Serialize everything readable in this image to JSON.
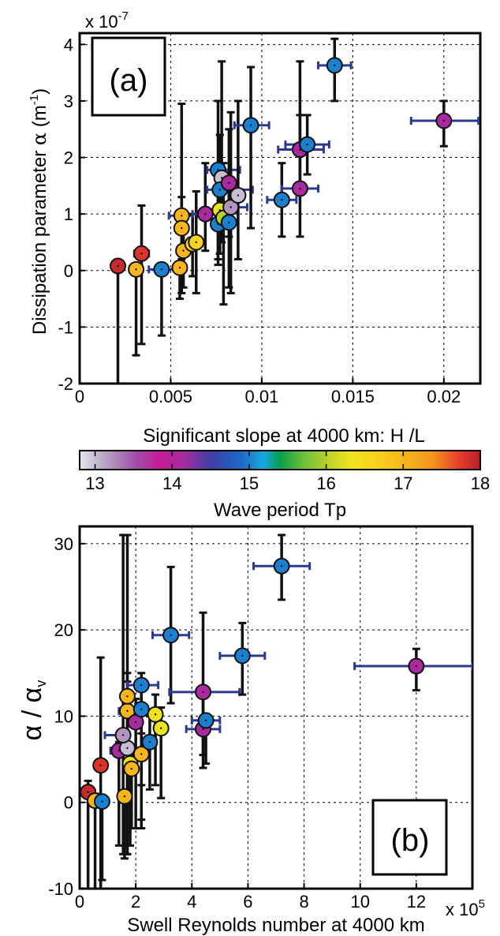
{
  "colorbar": {
    "label": "Wave period Tp",
    "range": [
      12.8,
      18
    ],
    "ticks": [
      13,
      14,
      15,
      16,
      17,
      18
    ]
  },
  "chart_data": [
    {
      "type": "scatter",
      "panel_label": "(a)",
      "xlabel": "Significant slope at 4000 km: H /L",
      "ylabel_main": "Dissipation parameter",
      "ylabel_greek": "α",
      "ylabel_units": "(m",
      "ylabel_units_exp": "-1",
      "ylabel_units_close": ")",
      "y_multiplier_base": "x 10",
      "y_multiplier_exp": "-7",
      "xlim": [
        0,
        0.022
      ],
      "ylim": [
        -2,
        4.2
      ],
      "grid": true,
      "xticks": [
        0,
        0.005,
        0.01,
        0.015,
        0.02
      ],
      "xtick_labels": [
        "0",
        "0.005",
        "0.01",
        "0.015",
        "0.02"
      ],
      "yticks": [
        -2,
        -1,
        0,
        1,
        2,
        3,
        4
      ],
      "ytick_labels": [
        "-2",
        "-1",
        "0",
        "1",
        "2",
        "3",
        "4"
      ],
      "points": [
        {
          "x": 0.0021,
          "y": 0.08,
          "ylo": -2,
          "yhi": 0.08,
          "tp": 17.9
        },
        {
          "x": 0.0034,
          "y": 0.3,
          "ylo": -1.3,
          "yhi": 1.15,
          "xlo": 0.003,
          "xhi": 0.0038,
          "tp": 17.8
        },
        {
          "x": 0.0031,
          "y": 0.02,
          "ylo": -1.5,
          "yhi": 0.02,
          "tp": 17.0
        },
        {
          "x": 0.0045,
          "y": 0.02,
          "ylo": -1.15,
          "yhi": 0.02,
          "xlo": 0.0038,
          "xhi": 0.0056,
          "tp": 15.0
        },
        {
          "x": 0.0055,
          "y": 0.05,
          "ylo": -0.5,
          "yhi": 0.05,
          "tp": 17.0
        },
        {
          "x": 0.0057,
          "y": 0.35,
          "ylo": -0.3,
          "yhi": 0.9,
          "tp": 17.0
        },
        {
          "x": 0.0056,
          "y": 0.97,
          "ylo": -0.4,
          "yhi": 2.95,
          "xlo": 0.0049,
          "xhi": 0.0062,
          "tp": 17.0
        },
        {
          "x": 0.0056,
          "y": 0.75,
          "ylo": 0.2,
          "yhi": 1.3,
          "tp": 17.0
        },
        {
          "x": 0.0062,
          "y": 0.47,
          "ylo": -0.1,
          "yhi": 1.0,
          "tp": 16.6
        },
        {
          "x": 0.0064,
          "y": 0.5,
          "ylo": -0.4,
          "yhi": 1.4,
          "tp": 16.6
        },
        {
          "x": 0.0069,
          "y": 1.0,
          "ylo": 0.35,
          "yhi": 1.9,
          "xlo": 0.0062,
          "xhi": 0.0075,
          "tp": 14.1
        },
        {
          "x": 0.0076,
          "y": 1.78,
          "ylo": 0.2,
          "yhi": 3.0,
          "xlo": 0.007,
          "xhi": 0.0088,
          "tp": 15.0
        },
        {
          "x": 0.0078,
          "y": 1.64,
          "ylo": 0.5,
          "yhi": 3.7,
          "tp": 13.0
        },
        {
          "x": 0.0077,
          "y": 1.43,
          "ylo": 0.3,
          "yhi": 2.4,
          "xlo": 0.007,
          "xhi": 0.0095,
          "tp": 15.0
        },
        {
          "x": 0.0082,
          "y": 1.55,
          "ylo": 0.6,
          "yhi": 2.5,
          "tp": 14.1
        },
        {
          "x": 0.0077,
          "y": 1.07,
          "ylo": 0.3,
          "yhi": 1.7,
          "tp": 16.3
        },
        {
          "x": 0.0076,
          "y": 0.82,
          "ylo": 0.1,
          "yhi": 1.6,
          "tp": 15.0
        },
        {
          "x": 0.0079,
          "y": 0.93,
          "ylo": -0.6,
          "yhi": 1.9,
          "tp": 16.0
        },
        {
          "x": 0.0082,
          "y": 0.85,
          "ylo": -0.3,
          "yhi": 1.6,
          "tp": 15.0
        },
        {
          "x": 0.0083,
          "y": 1.12,
          "ylo": -0.4,
          "yhi": 2.8,
          "xlo": 0.0076,
          "xhi": 0.0092,
          "tp": 13.2
        },
        {
          "x": 0.0087,
          "y": 1.33,
          "ylo": 0.2,
          "yhi": 3.0,
          "tp": 13.0
        },
        {
          "x": 0.0094,
          "y": 2.57,
          "ylo": 0.75,
          "yhi": 3.6,
          "xlo": 0.0085,
          "xhi": 0.0104,
          "tp": 15.0
        },
        {
          "x": 0.0111,
          "y": 1.25,
          "ylo": 0.6,
          "yhi": 1.9,
          "xlo": 0.0103,
          "xhi": 0.0119,
          "tp": 15.0
        },
        {
          "x": 0.0121,
          "y": 1.45,
          "ylo": 0.6,
          "yhi": 3.7,
          "xlo": 0.0111,
          "xhi": 0.0131,
          "tp": 14.1
        },
        {
          "x": 0.0121,
          "y": 2.14,
          "ylo": 1.5,
          "yhi": 2.75,
          "xlo": 0.0109,
          "xhi": 0.0134,
          "tp": 14.1
        },
        {
          "x": 0.0125,
          "y": 2.23,
          "ylo": 1.7,
          "yhi": 2.75,
          "xlo": 0.0113,
          "xhi": 0.0137,
          "tp": 15.0
        },
        {
          "x": 0.014,
          "y": 3.63,
          "ylo": 3.0,
          "yhi": 4.1,
          "xlo": 0.0131,
          "xhi": 0.0149,
          "tp": 15.0
        },
        {
          "x": 0.02,
          "y": 2.65,
          "ylo": 2.2,
          "yhi": 3.0,
          "xlo": 0.0182,
          "xhi": 0.0219,
          "tp": 14.1
        }
      ]
    },
    {
      "type": "scatter",
      "panel_label": "(b)",
      "xlabel": "Swell Reynolds number at 4000 km",
      "ylabel_greek": "α / α",
      "ylabel_sub": "v",
      "x_multiplier_base": "x 10",
      "x_multiplier_exp": "5",
      "xlim": [
        0,
        14
      ],
      "ylim": [
        -10,
        32
      ],
      "grid": true,
      "xticks": [
        0,
        2,
        4,
        6,
        8,
        10,
        12
      ],
      "xtick_labels": [
        "0",
        "2",
        "4",
        "6",
        "8",
        "10",
        "12"
      ],
      "yticks": [
        -10,
        0,
        10,
        20,
        30
      ],
      "ytick_labels": [
        "-10",
        "0",
        "10",
        "20",
        "30"
      ],
      "points": [
        {
          "x": 0.3,
          "y": 1.2,
          "ylo": -10,
          "yhi": 2.5,
          "tp": 17.9
        },
        {
          "x": 0.55,
          "y": 0.2,
          "ylo": -10,
          "yhi": 1.0,
          "tp": 17.0
        },
        {
          "x": 0.8,
          "y": 0.1,
          "ylo": -9,
          "yhi": 0.1,
          "tp": 15.0
        },
        {
          "x": 0.75,
          "y": 4.3,
          "ylo": -10,
          "yhi": 16.8,
          "tp": 17.8
        },
        {
          "x": 1.6,
          "y": 0.7,
          "ylo": -6.5,
          "yhi": 0.7,
          "tp": 17.0
        },
        {
          "x": 1.4,
          "y": 6.0,
          "ylo": -5,
          "yhi": 7.0,
          "xlo": 1.1,
          "xhi": 1.8,
          "tp": 14.1
        },
        {
          "x": 1.7,
          "y": 6.3,
          "ylo": -5,
          "yhi": 15.0,
          "tp": 13.0
        },
        {
          "x": 1.8,
          "y": 4.5,
          "ylo": -5,
          "yhi": 6.0,
          "tp": 16.3
        },
        {
          "x": 1.85,
          "y": 3.9,
          "ylo": -3,
          "yhi": 5.5,
          "tp": 17.0
        },
        {
          "x": 1.55,
          "y": 7.8,
          "ylo": -6,
          "yhi": 31.0,
          "xlo": 0.9,
          "xhi": 1.75,
          "tp": 13.2
        },
        {
          "x": 1.7,
          "y": 10.6,
          "ylo": -6,
          "yhi": 31.0,
          "xlo": 1.4,
          "xhi": 2.0,
          "tp": 17.0
        },
        {
          "x": 1.7,
          "y": 12.3,
          "ylo": -6,
          "yhi": 14.0,
          "tp": 17.0
        },
        {
          "x": 2.0,
          "y": 9.3,
          "ylo": -3,
          "yhi": 12.0,
          "tp": 14.1
        },
        {
          "x": 2.2,
          "y": 5.6,
          "ylo": 2,
          "yhi": 8.0,
          "tp": 17.0
        },
        {
          "x": 2.2,
          "y": 10.8,
          "ylo": -3,
          "yhi": 14.0,
          "tp": 15.0
        },
        {
          "x": 2.2,
          "y": 13.6,
          "ylo": -2,
          "yhi": 15.0,
          "xlo": 1.7,
          "xhi": 2.8,
          "tp": 15.0
        },
        {
          "x": 2.5,
          "y": 7.0,
          "ylo": 1.5,
          "yhi": 10.0,
          "tp": 15.0
        },
        {
          "x": 2.7,
          "y": 10.2,
          "ylo": 2,
          "yhi": 12.5,
          "tp": 16.3
        },
        {
          "x": 2.9,
          "y": 8.6,
          "ylo": 0.5,
          "yhi": 11.0,
          "tp": 16.3
        },
        {
          "x": 3.25,
          "y": 19.4,
          "ylo": 11.5,
          "yhi": 27.3,
          "xlo": 2.6,
          "xhi": 3.9,
          "tp": 15.0
        },
        {
          "x": 4.4,
          "y": 12.8,
          "ylo": 5.5,
          "yhi": 22.0,
          "xlo": 3.2,
          "xhi": 5.7,
          "tp": 14.1
        },
        {
          "x": 4.4,
          "y": 8.5,
          "ylo": 4,
          "yhi": 13.5,
          "xlo": 3.8,
          "xhi": 5.0,
          "tp": 14.1
        },
        {
          "x": 4.5,
          "y": 9.5,
          "ylo": 4.5,
          "yhi": 10.2,
          "xlo": 4.0,
          "xhi": 5.0,
          "tp": 15.0
        },
        {
          "x": 5.8,
          "y": 17.0,
          "ylo": 12.5,
          "yhi": 20.8,
          "xlo": 5.0,
          "xhi": 6.6,
          "tp": 15.0
        },
        {
          "x": 7.2,
          "y": 27.4,
          "ylo": 23.5,
          "yhi": 31.0,
          "xlo": 6.2,
          "xhi": 8.2,
          "tp": 15.0
        },
        {
          "x": 12.0,
          "y": 15.8,
          "ylo": 13.0,
          "yhi": 17.8,
          "xlo": 9.8,
          "xhi": 14.0,
          "tp": 14.1
        }
      ]
    }
  ]
}
